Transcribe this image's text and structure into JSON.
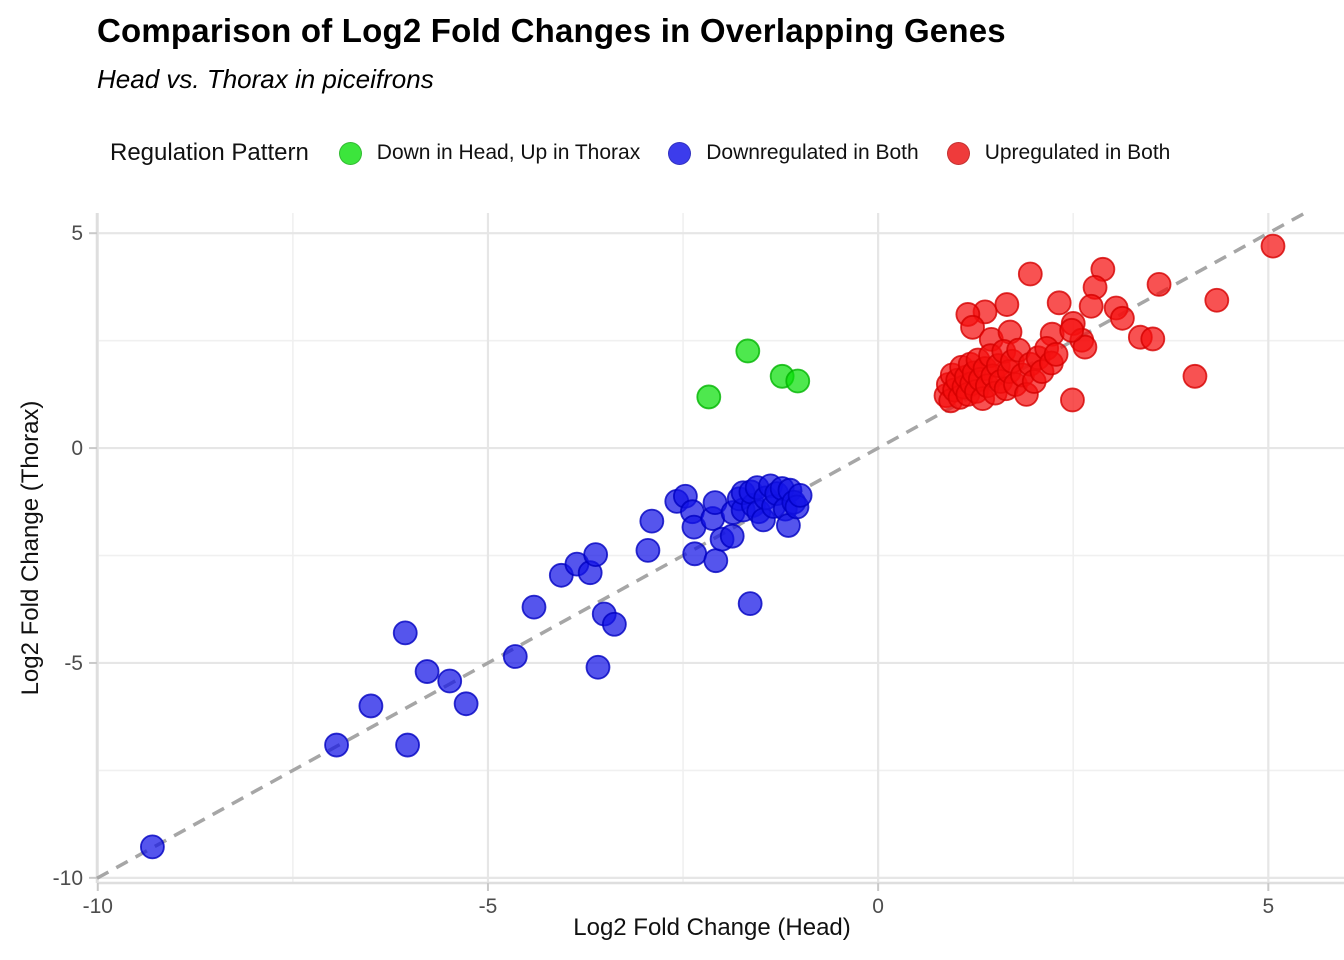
{
  "header": {
    "title": "Comparison of Log2 Fold Changes in Overlapping Genes",
    "subtitle": "Head vs. Thorax in piceifrons"
  },
  "legend": {
    "title": "Regulation Pattern",
    "items": [
      {
        "label": "Down in Head, Up in Thorax",
        "color": "#3CE53C"
      },
      {
        "label": "Downregulated in Both",
        "color": "#3C3CEC"
      },
      {
        "label": "Upregulated in Both",
        "color": "#EF3B3B"
      }
    ]
  },
  "chart_data": {
    "type": "scatter",
    "title": "Comparison of Log2 Fold Changes in Overlapping Genes",
    "subtitle": "Head vs. Thorax in piceifrons",
    "xlabel": "Log2 Fold Change (Head)",
    "ylabel": "Log2 Fold Change (Thorax)",
    "xlim": [
      -10.01,
      5.97
    ],
    "ylim": [
      -10.12,
      5.47
    ],
    "x_ticks": [
      -10,
      -5,
      0,
      5
    ],
    "y_ticks": [
      5,
      0,
      -5,
      -10
    ],
    "x_minor_ticks": [
      -7.5,
      -2.5,
      2.5
    ],
    "y_minor_ticks": [
      -7.5,
      -2.5,
      2.5
    ],
    "grid": true,
    "legend_position": "top",
    "identity_line": {
      "slope": 1,
      "intercept": 0,
      "style": "dashed",
      "color": "#A6A6A6"
    },
    "series": [
      {
        "name": "Down in Head, Up in Thorax",
        "color": "#0ADF0A",
        "stroke": "#00B400",
        "points": [
          [
            -2.17,
            1.19
          ],
          [
            -1.67,
            2.26
          ],
          [
            -1.23,
            1.67
          ],
          [
            -1.03,
            1.56
          ]
        ]
      },
      {
        "name": "Downregulated in Both",
        "color": "#1414E6",
        "stroke": "#0000C0",
        "points": [
          [
            -9.3,
            -9.28
          ],
          [
            -6.94,
            -6.91
          ],
          [
            -6.03,
            -6.91
          ],
          [
            -6.5,
            -6.0
          ],
          [
            -5.28,
            -5.95
          ],
          [
            -5.78,
            -5.2
          ],
          [
            -5.49,
            -5.42
          ],
          [
            -6.06,
            -4.3
          ],
          [
            -4.65,
            -4.85
          ],
          [
            -4.41,
            -3.7
          ],
          [
            -3.59,
            -5.1
          ],
          [
            -3.51,
            -3.86
          ],
          [
            -3.38,
            -4.1
          ],
          [
            -4.06,
            -2.96
          ],
          [
            -3.86,
            -2.7
          ],
          [
            -3.69,
            -2.9
          ],
          [
            -3.62,
            -2.48
          ],
          [
            -2.95,
            -2.38
          ],
          [
            -2.9,
            -1.7
          ],
          [
            -2.58,
            -1.24
          ],
          [
            -2.47,
            -1.12
          ],
          [
            -2.38,
            -1.48
          ],
          [
            -2.35,
            -2.46
          ],
          [
            -2.36,
            -1.84
          ],
          [
            -2.12,
            -1.64
          ],
          [
            -2.09,
            -1.27
          ],
          [
            -2.08,
            -2.62
          ],
          [
            -2.0,
            -2.12
          ],
          [
            -1.87,
            -2.05
          ],
          [
            -1.64,
            -3.62
          ],
          [
            -1.86,
            -1.5
          ],
          [
            -1.78,
            -1.18
          ],
          [
            -1.73,
            -1.44
          ],
          [
            -1.73,
            -1.04
          ],
          [
            -1.6,
            -1.33
          ],
          [
            -1.63,
            -1.02
          ],
          [
            -1.55,
            -0.92
          ],
          [
            -1.53,
            -1.48
          ],
          [
            -1.47,
            -1.67
          ],
          [
            -1.44,
            -1.16
          ],
          [
            -1.38,
            -0.88
          ],
          [
            -1.34,
            -1.36
          ],
          [
            -1.3,
            -1.06
          ],
          [
            -1.23,
            -0.94
          ],
          [
            -1.19,
            -1.42
          ],
          [
            -1.15,
            -1.8
          ],
          [
            -1.13,
            -0.98
          ],
          [
            -1.08,
            -1.26
          ],
          [
            -1.04,
            -1.37
          ],
          [
            -1.0,
            -1.1
          ]
        ]
      },
      {
        "name": "Upregulated in Both",
        "color": "#F50F0F",
        "stroke": "#D40000",
        "points": [
          [
            5.06,
            4.7
          ],
          [
            2.88,
            4.16
          ],
          [
            1.95,
            4.05
          ],
          [
            3.6,
            3.81
          ],
          [
            2.78,
            3.74
          ],
          [
            4.34,
            3.44
          ],
          [
            2.32,
            3.38
          ],
          [
            1.65,
            3.34
          ],
          [
            1.37,
            3.17
          ],
          [
            1.15,
            3.11
          ],
          [
            3.05,
            3.26
          ],
          [
            2.73,
            3.3
          ],
          [
            3.13,
            3.02
          ],
          [
            1.21,
            2.81
          ],
          [
            1.45,
            2.53
          ],
          [
            1.69,
            2.7
          ],
          [
            2.23,
            2.65
          ],
          [
            2.5,
            2.9
          ],
          [
            2.61,
            2.51
          ],
          [
            3.36,
            2.58
          ],
          [
            3.52,
            2.54
          ],
          [
            2.65,
            2.35
          ],
          [
            2.48,
            2.74
          ],
          [
            4.06,
            1.67
          ],
          [
            2.49,
            1.12
          ],
          [
            0.87,
            1.22
          ],
          [
            0.9,
            1.48
          ],
          [
            0.93,
            1.1
          ],
          [
            0.95,
            1.7
          ],
          [
            0.98,
            1.35
          ],
          [
            1.02,
            1.58
          ],
          [
            1.05,
            1.18
          ],
          [
            1.07,
            1.88
          ],
          [
            1.1,
            1.42
          ],
          [
            1.13,
            1.65
          ],
          [
            1.15,
            1.25
          ],
          [
            1.18,
            1.95
          ],
          [
            1.2,
            1.5
          ],
          [
            1.23,
            1.75
          ],
          [
            1.26,
            1.32
          ],
          [
            1.28,
            2.05
          ],
          [
            1.31,
            1.6
          ],
          [
            1.34,
            1.15
          ],
          [
            1.37,
            1.85
          ],
          [
            1.4,
            1.45
          ],
          [
            1.44,
            2.15
          ],
          [
            1.47,
            1.68
          ],
          [
            1.5,
            1.28
          ],
          [
            1.54,
            1.92
          ],
          [
            1.57,
            1.55
          ],
          [
            1.61,
            2.25
          ],
          [
            1.64,
            1.38
          ],
          [
            1.68,
            1.78
          ],
          [
            1.72,
            2.02
          ],
          [
            1.76,
            1.48
          ],
          [
            1.8,
            2.28
          ],
          [
            1.85,
            1.7
          ],
          [
            1.9,
            1.25
          ],
          [
            1.95,
            1.95
          ],
          [
            2.0,
            1.55
          ],
          [
            2.05,
            2.1
          ],
          [
            2.1,
            1.78
          ],
          [
            2.16,
            2.32
          ],
          [
            2.22,
            1.98
          ],
          [
            2.28,
            2.18
          ]
        ]
      }
    ]
  }
}
